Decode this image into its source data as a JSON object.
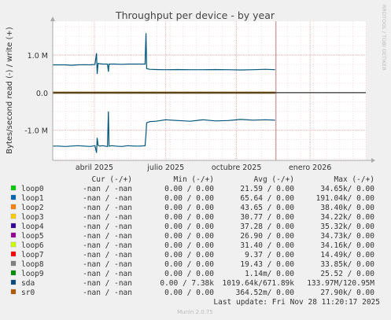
{
  "chart_data": {
    "type": "line",
    "title": "Throughput per device - by year",
    "ylabel": "Bytes/second read (-) / write (+)",
    "side_label": "RRDTOOL / TOBI OETIKER",
    "ylim": [
      -1800000,
      1900000
    ],
    "y_ticks": [
      {
        "value": 1000000,
        "label": "1.0 M"
      },
      {
        "value": 0,
        "label": "0.0"
      },
      {
        "value": -1000000,
        "label": "-1.0 M"
      }
    ],
    "x_ticks": [
      "abril 2025",
      "julio 2025",
      "octubre 2025",
      "enero 2026"
    ],
    "x_tick_fracs": [
      0.133,
      0.361,
      0.587,
      0.822
    ],
    "now_frac": 0.713,
    "series": [
      {
        "name": "sda",
        "color": "#00577a",
        "x": [
          0,
          0.02,
          0.04,
          0.06,
          0.08,
          0.1,
          0.12,
          0.135,
          0.14,
          0.142,
          0.145,
          0.15,
          0.16,
          0.175,
          0.178,
          0.18,
          0.19,
          0.2,
          0.22,
          0.24,
          0.26,
          0.28,
          0.295,
          0.298,
          0.3,
          0.31,
          0.33,
          0.36,
          0.4,
          0.44,
          0.48,
          0.52,
          0.56,
          0.6,
          0.64,
          0.68,
          0.71
        ],
        "write": [
          740000,
          740000,
          740000,
          730000,
          740000,
          745000,
          740000,
          750000,
          1050000,
          500000,
          780000,
          770000,
          760000,
          760000,
          560000,
          760000,
          760000,
          760000,
          755000,
          760000,
          760000,
          760000,
          760000,
          1580000,
          640000,
          620000,
          615000,
          610000,
          615000,
          610000,
          610000,
          615000,
          610000,
          605000,
          610000,
          620000,
          610000
        ],
        "read": [
          -1420000,
          -1420000,
          -1430000,
          -1420000,
          -1410000,
          -1420000,
          -1430000,
          -1410000,
          -1600000,
          -1200000,
          -1400000,
          -1420000,
          -1410000,
          -1430000,
          -500000,
          -1420000,
          -1410000,
          -1420000,
          -1430000,
          -1410000,
          -1420000,
          -1420000,
          -1410000,
          -1100000,
          -800000,
          -770000,
          -760000,
          -720000,
          -740000,
          -760000,
          -720000,
          -750000,
          -740000,
          -710000,
          -730000,
          -720000,
          -730000
        ]
      }
    ],
    "legend_header": {
      "cur": "Cur (-/+)",
      "min": "Min (-/+)",
      "avg": "Avg (-/+)",
      "max": "Max (-/+)"
    },
    "legend": [
      {
        "name": "loop0",
        "color": "#00cc00",
        "cur": "-nan /  -nan",
        "min": "0.00 /  0.00",
        "avg": "21.59 /  0.00",
        "max": "34.65k/  0.00"
      },
      {
        "name": "loop1",
        "color": "#0066b3",
        "cur": "-nan /  -nan",
        "min": "0.00 /  0.00",
        "avg": "65.64 /  0.00",
        "max": "191.04k/  0.00"
      },
      {
        "name": "loop2",
        "color": "#ff8000",
        "cur": "-nan /  -nan",
        "min": "0.00 /  0.00",
        "avg": "43.65 /  0.00",
        "max": "38.40k/  0.00"
      },
      {
        "name": "loop3",
        "color": "#ffcc00",
        "cur": "-nan /  -nan",
        "min": "0.00 /  0.00",
        "avg": "30.77 /  0.00",
        "max": "34.22k/  0.00"
      },
      {
        "name": "loop4",
        "color": "#330099",
        "cur": "-nan /  -nan",
        "min": "0.00 /  0.00",
        "avg": "37.28 /  0.00",
        "max": "35.32k/  0.00"
      },
      {
        "name": "loop5",
        "color": "#990099",
        "cur": "-nan /  -nan",
        "min": "0.00 /  0.00",
        "avg": "26.90 /  0.00",
        "max": "34.73k/  0.00"
      },
      {
        "name": "loop6",
        "color": "#ccff00",
        "cur": "-nan /  -nan",
        "min": "0.00 /  0.00",
        "avg": "31.40 /  0.00",
        "max": "34.16k/  0.00"
      },
      {
        "name": "loop7",
        "color": "#ff0000",
        "cur": "-nan /  -nan",
        "min": "0.00 /  0.00",
        "avg": "9.37 /  0.00",
        "max": "14.49k/  0.00"
      },
      {
        "name": "loop8",
        "color": "#808080",
        "cur": "-nan /  -nan",
        "min": "0.00 /  0.00",
        "avg": "19.43 /  0.00",
        "max": "33.85k/  0.00"
      },
      {
        "name": "loop9",
        "color": "#008f00",
        "cur": "-nan /  -nan",
        "min": "0.00 /  0.00",
        "avg": "1.14m/  0.00",
        "max": "25.52 /  0.00"
      },
      {
        "name": "sda",
        "color": "#00487d",
        "cur": "-nan /  -nan",
        "min": "0.00 /  7.38k",
        "avg": "1019.64k/671.89k",
        "max": "133.97M/120.95M"
      },
      {
        "name": "sr0",
        "color": "#b35a00",
        "cur": "-nan /  -nan",
        "min": "0.00 /  0.00",
        "avg": "364.52m/  0.00",
        "max": "27.90k/  0.00"
      }
    ],
    "last_update": "Last update: Fri Nov 28 11:20:17 2025",
    "footer": "Munin 2.0.75"
  }
}
